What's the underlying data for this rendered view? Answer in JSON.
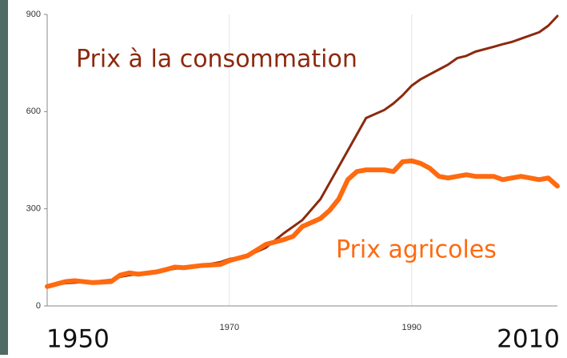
{
  "chart_data": {
    "type": "line",
    "x": [
      1950,
      1952,
      1953,
      1955,
      1957,
      1958,
      1959,
      1960,
      1962,
      1963,
      1964,
      1965,
      1967,
      1969,
      1970,
      1972,
      1974,
      1976,
      1977,
      1978,
      1980,
      1981,
      1982,
      1983,
      1984,
      1985,
      1987,
      1988,
      1989,
      1990,
      1991,
      1992,
      1993,
      1994,
      1995,
      1996,
      1997,
      1999,
      2000,
      2001,
      2002,
      2004,
      2005,
      2006
    ],
    "series": [
      {
        "name": "Prix à la consommation",
        "color": "#8b2a0e",
        "values": [
          62,
          70,
          72,
          75,
          80,
          90,
          95,
          98,
          105,
          110,
          115,
          118,
          125,
          135,
          145,
          155,
          180,
          225,
          245,
          265,
          330,
          380,
          430,
          480,
          530,
          580,
          605,
          625,
          650,
          680,
          700,
          715,
          730,
          745,
          765,
          772,
          785,
          800,
          808,
          815,
          825,
          845,
          865,
          895
        ]
      },
      {
        "name": "Prix agricoles",
        "color": "#ff6a10",
        "values": [
          60,
          75,
          78,
          72,
          75,
          95,
          102,
          98,
          105,
          112,
          120,
          118,
          125,
          128,
          140,
          155,
          190,
          205,
          215,
          245,
          270,
          295,
          330,
          390,
          415,
          420,
          420,
          415,
          445,
          448,
          440,
          425,
          400,
          395,
          400,
          405,
          400,
          400,
          390,
          395,
          400,
          390,
          395,
          370
        ]
      }
    ],
    "xlim": [
      1950,
      2006
    ],
    "xticks": [
      1970,
      1990
    ],
    "ylim": [
      0,
      900
    ],
    "yticks": [
      0,
      300,
      600,
      900
    ],
    "annotations": [
      "1950",
      "2010"
    ]
  }
}
